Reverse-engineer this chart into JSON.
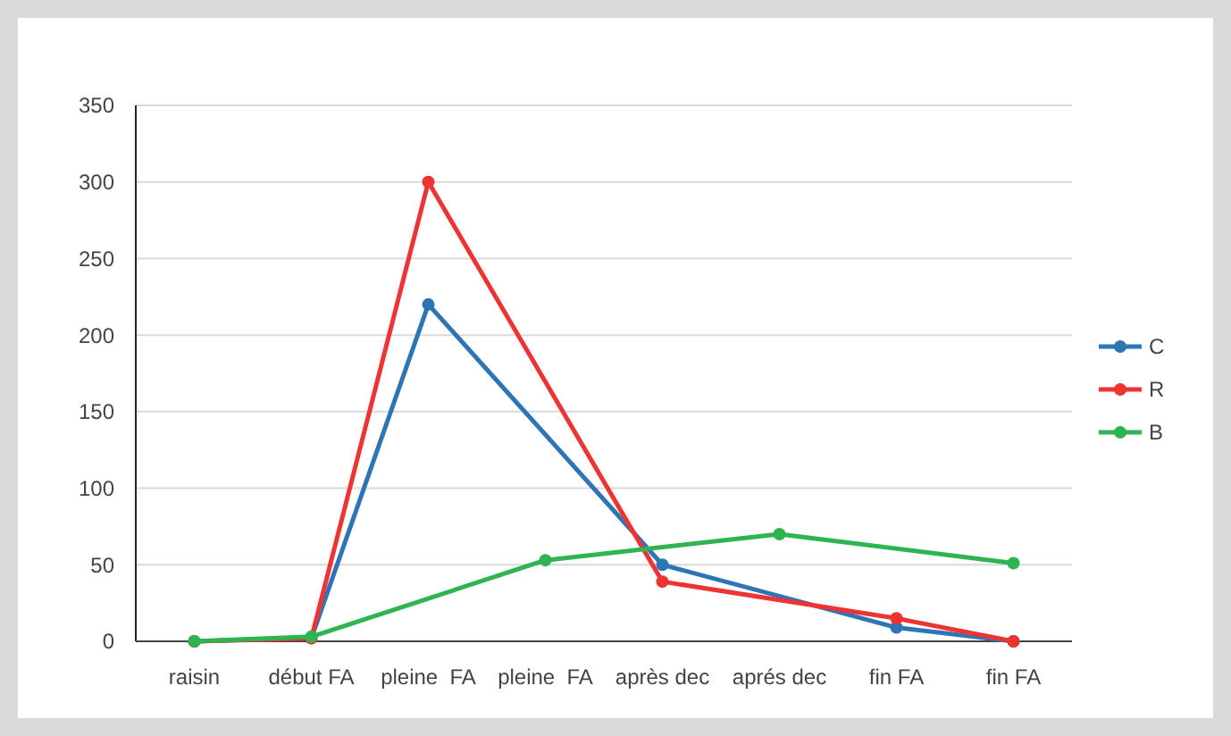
{
  "chart_data": {
    "type": "line",
    "categories": [
      "raisin",
      "début FA",
      "pleine  FA",
      "pleine  FA",
      "après dec",
      "aprés dec",
      "fin FA",
      "fin FA"
    ],
    "series": [
      {
        "name": "C",
        "color": "#2e75b6",
        "values": [
          0,
          2,
          220,
          null,
          50,
          null,
          9,
          0
        ]
      },
      {
        "name": "R",
        "color": "#ee3333",
        "values": [
          0,
          2,
          300,
          null,
          39,
          null,
          15,
          0
        ]
      },
      {
        "name": "B",
        "color": "#2eb450",
        "values": [
          0,
          3,
          null,
          53,
          null,
          70,
          null,
          51
        ]
      }
    ],
    "ylim": [
      0,
      350
    ],
    "yticks": [
      0,
      50,
      100,
      150,
      200,
      250,
      300,
      350
    ],
    "grid": "y",
    "legend": "right",
    "marker": "circle",
    "line_style": "solid"
  }
}
